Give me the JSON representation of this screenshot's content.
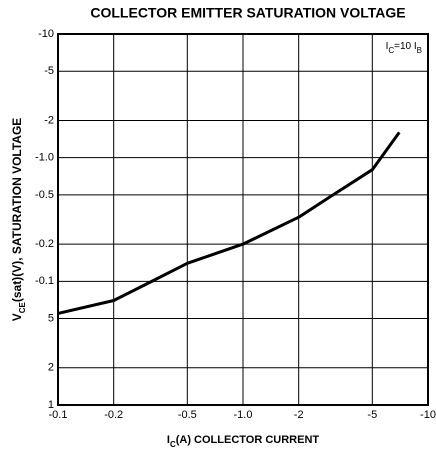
{
  "chart_data": {
    "type": "line",
    "title": "COLLECTOR EMITTER SATURATION VOLTAGE",
    "x_label": [
      "I",
      "C",
      "(A) COLLECTOR CURRENT"
    ],
    "y_label": [
      "V",
      "CE",
      "(sat)(V), SATURATION VOLTAGE"
    ],
    "annotation": [
      "I",
      "C",
      "=10 I",
      "B"
    ],
    "log_x": true,
    "log_y": true,
    "grid": true,
    "x": [
      -0.1,
      -0.2,
      -0.3,
      -0.5,
      -1.0,
      -2,
      -3,
      -5,
      -7
    ],
    "series": [
      {
        "name": "VCE(sat)",
        "color": "#000000",
        "values": [
          -0.055,
          -0.07,
          -0.095,
          -0.14,
          -0.2,
          -0.33,
          -0.49,
          -0.8,
          -1.6
        ]
      }
    ],
    "xlim": [
      -0.1,
      -10
    ],
    "xticks": [
      -0.1,
      -0.2,
      -0.5,
      {
        "value": -1.0,
        "label": "-1.0"
      },
      -2,
      -5,
      -10
    ],
    "ylim": [
      -0.01,
      -10
    ],
    "yticks": [
      -10,
      -5,
      -2,
      {
        "value": -1.0,
        "label": "-1.0"
      },
      -0.5,
      -0.2,
      -0.1,
      {
        "value": -0.05,
        "label": "5"
      },
      {
        "value": -0.02,
        "label": "2"
      },
      {
        "value": -0.01,
        "label": "1"
      }
    ]
  }
}
